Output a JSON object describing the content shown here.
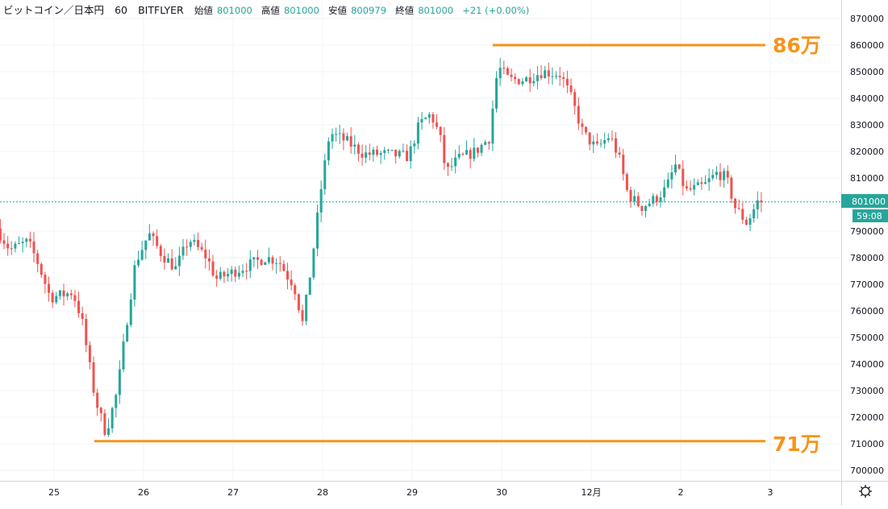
{
  "header": {
    "symbol": "ビットコイン／日本円",
    "interval": "60",
    "exchange": "BITFLYER",
    "open_label": "始値",
    "open_value": "801000",
    "high_label": "高値",
    "high_value": "801000",
    "low_label": "安値",
    "low_value": "800979",
    "close_label": "終値",
    "close_value": "801000",
    "change": "+21 (+0.00%)"
  },
  "price_tag": {
    "value": "801000",
    "countdown": "59:08"
  },
  "colors": {
    "up": "#26a69a",
    "down": "#ef5350",
    "annotation": "#f7931a",
    "grid": "#f0f3fa",
    "price_line": "#26a69a"
  },
  "annotations": {
    "high_label": "86万",
    "low_label": "71万"
  },
  "settings_icon": "gear-icon",
  "chart_data": {
    "type": "candlestick",
    "title": "",
    "xlabel": "",
    "ylabel": "",
    "ylim": [
      695000,
      875000
    ],
    "y_ticks": [
      700000,
      710000,
      720000,
      730000,
      740000,
      750000,
      760000,
      770000,
      780000,
      790000,
      800000,
      810000,
      820000,
      830000,
      840000,
      850000,
      860000,
      870000
    ],
    "x_ticks": [
      "25",
      "26",
      "27",
      "28",
      "29",
      "30",
      "12月",
      "2",
      "3"
    ],
    "interval_minutes": 60,
    "last_price": 801000,
    "horizontal_lines": [
      {
        "value": 860000,
        "label": "86万",
        "from_day": 29.9,
        "to_day": 33.0
      },
      {
        "value": 711000,
        "label": "71万",
        "from_day": 25.45,
        "to_day": 33.0
      }
    ],
    "anchors": [
      [
        24.4,
        791000
      ],
      [
        24.55,
        783000
      ],
      [
        24.75,
        786000
      ],
      [
        24.85,
        779000
      ],
      [
        25.0,
        765000
      ],
      [
        25.25,
        767000
      ],
      [
        25.35,
        757000
      ],
      [
        25.5,
        727000
      ],
      [
        25.62,
        714000
      ],
      [
        25.75,
        730000
      ],
      [
        25.85,
        755000
      ],
      [
        25.95,
        778000
      ],
      [
        26.1,
        789000
      ],
      [
        26.25,
        781000
      ],
      [
        26.4,
        776000
      ],
      [
        26.55,
        787000
      ],
      [
        26.75,
        780000
      ],
      [
        26.85,
        772000
      ],
      [
        27.0,
        774000
      ],
      [
        27.2,
        777000
      ],
      [
        27.4,
        780000
      ],
      [
        27.55,
        779000
      ],
      [
        27.65,
        773000
      ],
      [
        27.72,
        770000
      ],
      [
        27.82,
        755000
      ],
      [
        27.92,
        778000
      ],
      [
        28.02,
        805000
      ],
      [
        28.12,
        827000
      ],
      [
        28.3,
        824000
      ],
      [
        28.5,
        819000
      ],
      [
        28.75,
        819000
      ],
      [
        29.0,
        818000
      ],
      [
        29.12,
        830000
      ],
      [
        29.25,
        834000
      ],
      [
        29.35,
        826000
      ],
      [
        29.42,
        812000
      ],
      [
        29.55,
        817000
      ],
      [
        29.75,
        820000
      ],
      [
        29.9,
        825000
      ],
      [
        30.0,
        852000
      ],
      [
        30.12,
        847000
      ],
      [
        30.3,
        847000
      ],
      [
        30.5,
        850000
      ],
      [
        30.7,
        849000
      ],
      [
        30.82,
        840000
      ],
      [
        30.95,
        827000
      ],
      [
        31.1,
        821000
      ],
      [
        31.25,
        826000
      ],
      [
        31.35,
        818000
      ],
      [
        31.45,
        804000
      ],
      [
        31.6,
        799000
      ],
      [
        31.75,
        802000
      ],
      [
        31.88,
        806000
      ],
      [
        31.98,
        815000
      ],
      [
        32.1,
        805000
      ],
      [
        32.3,
        807000
      ],
      [
        32.45,
        812000
      ],
      [
        32.55,
        810000
      ],
      [
        32.65,
        799000
      ],
      [
        32.78,
        793000
      ],
      [
        32.9,
        801000
      ]
    ]
  }
}
